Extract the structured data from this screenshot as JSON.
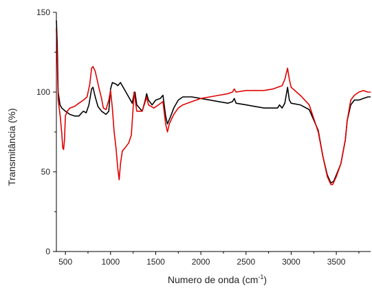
{
  "chart_data": {
    "type": "line",
    "title": "",
    "xlabel": "Numero de onda (cm",
    "xlabel_sup": "-1",
    "xlabel_close": ")",
    "ylabel": "Transmitância (%)",
    "xlim": [
      400,
      3880
    ],
    "ylim": [
      0,
      150
    ],
    "x_ticks": [
      500,
      1000,
      1500,
      2000,
      2500,
      3000,
      3500
    ],
    "y_ticks": [
      0,
      50,
      100,
      150
    ],
    "grid": false,
    "legend": "none",
    "series": [
      {
        "color": "#000000",
        "points": [
          [
            400,
            145
          ],
          [
            410,
            130
          ],
          [
            420,
            100
          ],
          [
            440,
            92
          ],
          [
            460,
            90
          ],
          [
            500,
            88
          ],
          [
            550,
            86
          ],
          [
            600,
            85
          ],
          [
            650,
            85
          ],
          [
            680,
            87
          ],
          [
            700,
            88
          ],
          [
            730,
            87
          ],
          [
            760,
            92
          ],
          [
            790,
            102
          ],
          [
            805,
            103
          ],
          [
            830,
            97
          ],
          [
            860,
            91
          ],
          [
            900,
            88
          ],
          [
            950,
            86
          ],
          [
            980,
            88
          ],
          [
            1000,
            102
          ],
          [
            1020,
            106
          ],
          [
            1060,
            105
          ],
          [
            1080,
            104
          ],
          [
            1110,
            106
          ],
          [
            1150,
            102
          ],
          [
            1200,
            97
          ],
          [
            1240,
            93
          ],
          [
            1260,
            99
          ],
          [
            1270,
            100
          ],
          [
            1290,
            92
          ],
          [
            1350,
            88
          ],
          [
            1380,
            94
          ],
          [
            1400,
            99
          ],
          [
            1420,
            95
          ],
          [
            1460,
            92
          ],
          [
            1500,
            95
          ],
          [
            1550,
            96
          ],
          [
            1580,
            98
          ],
          [
            1610,
            85
          ],
          [
            1630,
            80
          ],
          [
            1660,
            84
          ],
          [
            1700,
            90
          ],
          [
            1750,
            95
          ],
          [
            1800,
            97
          ],
          [
            1900,
            97
          ],
          [
            2000,
            96
          ],
          [
            2100,
            95
          ],
          [
            2200,
            94
          ],
          [
            2300,
            93
          ],
          [
            2350,
            94
          ],
          [
            2370,
            96
          ],
          [
            2390,
            93
          ],
          [
            2500,
            92
          ],
          [
            2600,
            91
          ],
          [
            2700,
            90
          ],
          [
            2800,
            90
          ],
          [
            2850,
            90
          ],
          [
            2870,
            92
          ],
          [
            2900,
            90
          ],
          [
            2930,
            93
          ],
          [
            2960,
            103
          ],
          [
            2980,
            95
          ],
          [
            3000,
            93
          ],
          [
            3100,
            92
          ],
          [
            3200,
            89
          ],
          [
            3300,
            76
          ],
          [
            3350,
            60
          ],
          [
            3400,
            48
          ],
          [
            3440,
            43
          ],
          [
            3470,
            44
          ],
          [
            3500,
            48
          ],
          [
            3550,
            55
          ],
          [
            3600,
            70
          ],
          [
            3620,
            82
          ],
          [
            3660,
            92
          ],
          [
            3700,
            95
          ],
          [
            3750,
            95
          ],
          [
            3800,
            96
          ],
          [
            3850,
            97
          ],
          [
            3880,
            97
          ]
        ]
      },
      {
        "color": "#e00000",
        "points": [
          [
            400,
            140
          ],
          [
            410,
            120
          ],
          [
            420,
            95
          ],
          [
            440,
            86
          ],
          [
            460,
            74
          ],
          [
            470,
            65
          ],
          [
            480,
            64
          ],
          [
            490,
            70
          ],
          [
            500,
            85
          ],
          [
            520,
            88
          ],
          [
            550,
            90
          ],
          [
            600,
            91
          ],
          [
            650,
            93
          ],
          [
            700,
            95
          ],
          [
            740,
            97
          ],
          [
            770,
            105
          ],
          [
            790,
            115
          ],
          [
            805,
            116
          ],
          [
            830,
            113
          ],
          [
            870,
            103
          ],
          [
            900,
            96
          ],
          [
            920,
            90
          ],
          [
            950,
            89
          ],
          [
            980,
            95
          ],
          [
            1000,
            101
          ],
          [
            1020,
            90
          ],
          [
            1040,
            75
          ],
          [
            1060,
            65
          ],
          [
            1080,
            52
          ],
          [
            1095,
            45
          ],
          [
            1110,
            55
          ],
          [
            1130,
            63
          ],
          [
            1160,
            65
          ],
          [
            1200,
            68
          ],
          [
            1230,
            73
          ],
          [
            1250,
            90
          ],
          [
            1260,
            100
          ],
          [
            1270,
            96
          ],
          [
            1290,
            88
          ],
          [
            1350,
            88
          ],
          [
            1390,
            95
          ],
          [
            1400,
            97
          ],
          [
            1420,
            92
          ],
          [
            1480,
            90
          ],
          [
            1530,
            92
          ],
          [
            1580,
            94
          ],
          [
            1610,
            80
          ],
          [
            1630,
            75
          ],
          [
            1650,
            80
          ],
          [
            1700,
            86
          ],
          [
            1750,
            90
          ],
          [
            1800,
            92
          ],
          [
            1900,
            94
          ],
          [
            2000,
            96
          ],
          [
            2100,
            97
          ],
          [
            2200,
            98
          ],
          [
            2300,
            99
          ],
          [
            2350,
            100
          ],
          [
            2370,
            102
          ],
          [
            2390,
            100
          ],
          [
            2500,
            101
          ],
          [
            2600,
            101
          ],
          [
            2700,
            101
          ],
          [
            2800,
            102
          ],
          [
            2850,
            103
          ],
          [
            2900,
            104
          ],
          [
            2930,
            108
          ],
          [
            2960,
            115
          ],
          [
            2980,
            108
          ],
          [
            3000,
            103
          ],
          [
            3100,
            98
          ],
          [
            3200,
            92
          ],
          [
            3300,
            75
          ],
          [
            3350,
            60
          ],
          [
            3400,
            47
          ],
          [
            3440,
            42
          ],
          [
            3460,
            42
          ],
          [
            3500,
            47
          ],
          [
            3550,
            55
          ],
          [
            3600,
            70
          ],
          [
            3620,
            82
          ],
          [
            3660,
            95
          ],
          [
            3700,
            98
          ],
          [
            3750,
            100
          ],
          [
            3800,
            101
          ],
          [
            3850,
            100
          ],
          [
            3880,
            100
          ]
        ]
      }
    ]
  }
}
